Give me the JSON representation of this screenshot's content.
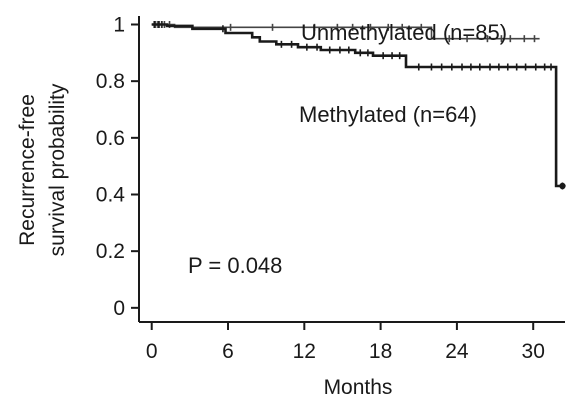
{
  "chart_data": {
    "type": "line",
    "subtype": "kaplan-meier step",
    "title": "",
    "xlabel": "Months",
    "ylabel": [
      "Recurrence-free",
      "survival probability"
    ],
    "x_ticks": [
      0,
      6,
      12,
      18,
      24,
      30
    ],
    "y_ticks": [
      0,
      0.2,
      0.4,
      0.6,
      0.8,
      1
    ],
    "xlim": [
      -1,
      32.5
    ],
    "ylim": [
      -0.05,
      1.03
    ],
    "grid": false,
    "annotation": "P = 0.048",
    "series": [
      {
        "name": "Unmethylated (n=85)",
        "color": "#444444",
        "x": [
          0,
          1.8,
          1.8,
          22,
          22,
          30.5
        ],
        "y": [
          1.0,
          1.0,
          0.99,
          0.99,
          0.95,
          0.95
        ],
        "censored_x": [
          0.3,
          0.6,
          1.0,
          1.4,
          6.2,
          9.5,
          12.8,
          14.6,
          15.8,
          17.2,
          18.6,
          19.7,
          21.2,
          23.4,
          24.8,
          26.4,
          27.5,
          28.2,
          29.3,
          30.1
        ]
      },
      {
        "name": "Methylated (n=64)",
        "color": "#1a1a1a",
        "x": [
          0,
          1.2,
          1.2,
          3.2,
          3.2,
          5.8,
          5.8,
          7.9,
          7.9,
          8.5,
          8.5,
          9.8,
          9.8,
          11.5,
          11.5,
          13.3,
          13.3,
          16.0,
          16.0,
          17.4,
          17.4,
          20.0,
          20.0,
          31.8,
          31.8,
          32.3
        ],
        "y": [
          1.0,
          1.0,
          0.995,
          0.995,
          0.985,
          0.985,
          0.97,
          0.97,
          0.955,
          0.955,
          0.94,
          0.94,
          0.93,
          0.93,
          0.92,
          0.92,
          0.91,
          0.91,
          0.9,
          0.9,
          0.89,
          0.89,
          0.85,
          0.85,
          0.43,
          0.43
        ],
        "censored_x": [
          0.2,
          0.5,
          0.8,
          5.6,
          10.2,
          11.0,
          12.2,
          13.0,
          14.0,
          14.8,
          15.5,
          16.4,
          17.0,
          18.2,
          18.9,
          19.5,
          21.0,
          22.0,
          22.8,
          23.6,
          24.4,
          25.1,
          25.8,
          26.6,
          27.3,
          28.0,
          28.7,
          29.4,
          30.2,
          30.9,
          31.4,
          32.3
        ]
      }
    ]
  }
}
